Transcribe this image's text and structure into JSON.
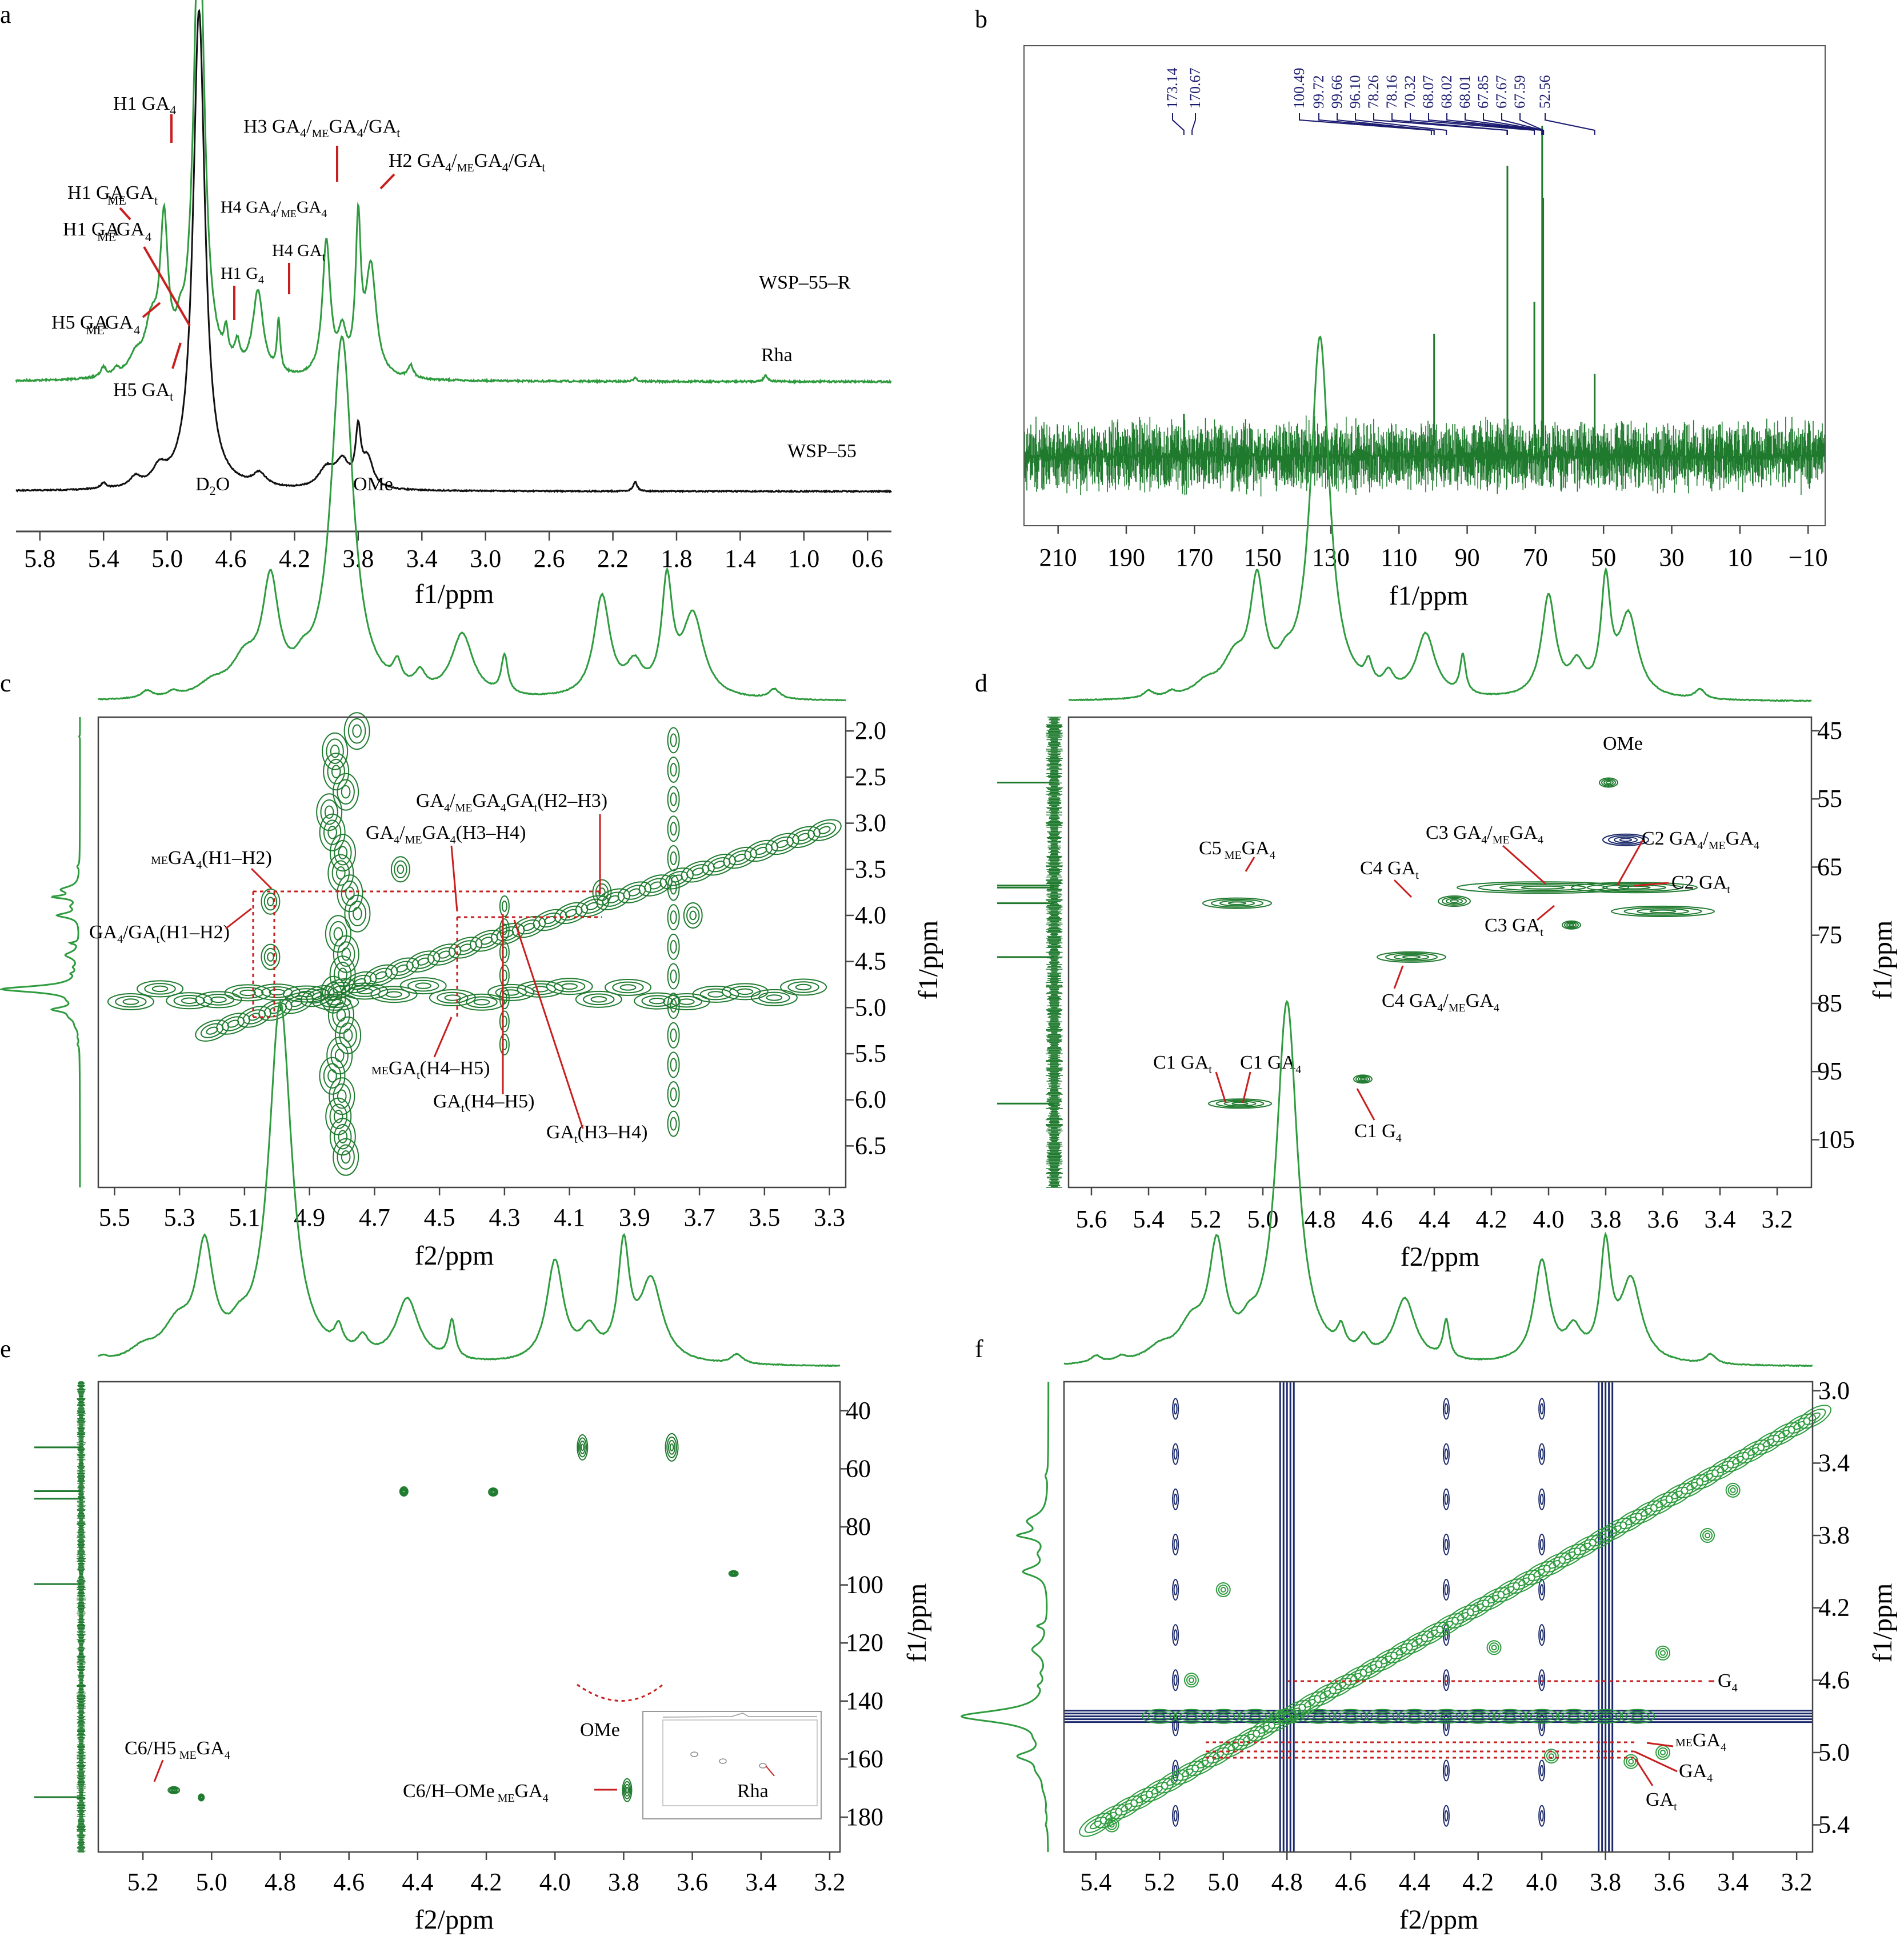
{
  "figure": {
    "panels": [
      {
        "id": "a",
        "letter": "a"
      },
      {
        "id": "b",
        "letter": "b"
      },
      {
        "id": "c",
        "letter": "c"
      },
      {
        "id": "d",
        "letter": "d"
      },
      {
        "id": "e",
        "letter": "e"
      },
      {
        "id": "f",
        "letter": "f"
      }
    ]
  },
  "colors": {
    "green": "#2e9b3e",
    "dark_green": "#1f7a2e",
    "navy": "#1c2a6b",
    "black": "#111111",
    "red": "#c81e1e",
    "peak_label": "#1a1a6e"
  },
  "chart_data": [
    {
      "panel": "a",
      "type": "line",
      "title": "",
      "xlabel": "f1/ppm",
      "ylabel": "",
      "xlim": [
        5.95,
        0.45
      ],
      "reversed": true,
      "xticks": [
        "5.8",
        "5.4",
        "5.0",
        "4.6",
        "4.2",
        "3.8",
        "3.4",
        "3.0",
        "2.6",
        "2.2",
        "1.8",
        "1.4",
        "1.0",
        "0.6"
      ],
      "series": [
        {
          "name": "WSP–55–R",
          "color": "#2e9b3e",
          "baseline": 0.73,
          "peaks": [
            {
              "x": 5.4,
              "h": 0.03,
              "w": 0.02
            },
            {
              "x": 5.32,
              "h": 0.02,
              "w": 0.02
            },
            {
              "x": 5.2,
              "h": 0.05,
              "w": 0.05
            },
            {
              "x": 5.1,
              "h": 0.14,
              "w": 0.05
            },
            {
              "x": 5.02,
              "h": 0.45,
              "w": 0.03
            },
            {
              "x": 4.92,
              "h": 0.07,
              "w": 0.03
            },
            {
              "x": 4.8,
              "h": 1.5,
              "w": 0.04
            },
            {
              "x": 4.63,
              "h": 0.09,
              "w": 0.015
            },
            {
              "x": 4.56,
              "h": 0.07,
              "w": 0.02
            },
            {
              "x": 4.43,
              "h": 0.26,
              "w": 0.04
            },
            {
              "x": 4.3,
              "h": 0.16,
              "w": 0.012
            },
            {
              "x": 4.0,
              "h": 0.42,
              "w": 0.03
            },
            {
              "x": 3.9,
              "h": 0.12,
              "w": 0.03
            },
            {
              "x": 3.8,
              "h": 0.46,
              "w": 0.02
            },
            {
              "x": 3.72,
              "h": 0.34,
              "w": 0.04
            },
            {
              "x": 3.47,
              "h": 0.04,
              "w": 0.02
            },
            {
              "x": 2.06,
              "h": 0.015,
              "w": 0.01
            },
            {
              "x": 1.24,
              "h": 0.02,
              "w": 0.015
            }
          ]
        },
        {
          "name": "WSP–55",
          "color": "#111111",
          "baseline": 0.93,
          "peaks": [
            {
              "x": 5.4,
              "h": 0.018,
              "w": 0.02
            },
            {
              "x": 5.2,
              "h": 0.03,
              "w": 0.04
            },
            {
              "x": 5.05,
              "h": 0.05,
              "w": 0.05
            },
            {
              "x": 4.8,
              "h": 1.5,
              "w": 0.045
            },
            {
              "x": 4.42,
              "h": 0.04,
              "w": 0.05
            },
            {
              "x": 4.0,
              "h": 0.06,
              "w": 0.06
            },
            {
              "x": 3.9,
              "h": 0.08,
              "w": 0.05
            },
            {
              "x": 3.8,
              "h": 0.17,
              "w": 0.02
            },
            {
              "x": 3.74,
              "h": 0.09,
              "w": 0.04
            },
            {
              "x": 2.06,
              "h": 0.03,
              "w": 0.015
            }
          ]
        }
      ],
      "annotations": [
        "H1 GA",
        "H1 GA",
        "H1 GA",
        "H5 GA",
        "H5 GA",
        "H1 G",
        "H4 GA",
        "H4 GA",
        "H3 GA",
        "H2 GA",
        "D",
        "O",
        "OMe",
        "Rha"
      ],
      "ann_sub": {
        "four": "4",
        "t": "t",
        "me": "ME",
        "two": "2",
        "slash": "/"
      },
      "series_labels": [
        "WSP–55–R",
        "WSP–55"
      ]
    },
    {
      "panel": "b",
      "type": "line",
      "title": "",
      "xlabel": "f1/ppm",
      "xlim": [
        220,
        -15
      ],
      "reversed": true,
      "xticks": [
        "210",
        "190",
        "170",
        "150",
        "130",
        "110",
        "90",
        "70",
        "50",
        "30",
        "10",
        "−10"
      ],
      "peak_labels": [
        "173.14",
        "170.67",
        "100.49",
        "99.72",
        "99.66",
        "96.10",
        "78.26",
        "78.16",
        "70.32",
        "68.07",
        "68.02",
        "68.01",
        "67.85",
        "67.67",
        "67.59",
        "52.56"
      ],
      "peaks": [
        {
          "x": 173.1,
          "h": 0.08
        },
        {
          "x": 99.7,
          "h": 0.28
        },
        {
          "x": 78.2,
          "h": 0.7
        },
        {
          "x": 70.3,
          "h": 0.36
        },
        {
          "x": 68.0,
          "h": 0.8
        },
        {
          "x": 67.7,
          "h": 0.62
        },
        {
          "x": 52.6,
          "h": 0.18
        }
      ]
    },
    {
      "panel": "c",
      "type": "heatmap",
      "title": "",
      "xlabel": "f2/ppm",
      "ylabel": "f1/ppm",
      "xlim": [
        5.55,
        3.25
      ],
      "ylim": [
        1.85,
        6.95
      ],
      "xticks": [
        "5.5",
        "5.3",
        "5.1",
        "4.9",
        "4.7",
        "4.5",
        "4.3",
        "4.1",
        "3.9",
        "3.7",
        "3.5",
        "3.3"
      ],
      "yticks": [
        "2.0",
        "2.5",
        "3.0",
        "3.5",
        "4.0",
        "4.5",
        "5.0",
        "5.5",
        "6.0",
        "6.5"
      ],
      "labels": [
        "GA",
        "GA",
        "(H2–H3)",
        "GA",
        "GA",
        "(H3–H4)",
        "GA",
        "(H1–H2)",
        "GA",
        "/GA",
        "(H1–H2)",
        "GA",
        "(H4–H5)",
        "GA",
        "(H4–H5)",
        "GA",
        "(H3–H4)"
      ]
    },
    {
      "panel": "d",
      "type": "heatmap",
      "title": "",
      "xlabel": "f2/ppm",
      "ylabel": "f1/ppm",
      "xlim": [
        5.68,
        3.08
      ],
      "ylim": [
        43,
        112
      ],
      "xticks": [
        "5.6",
        "5.4",
        "5.2",
        "5.0",
        "4.8",
        "4.6",
        "4.4",
        "4.2",
        "4.0",
        "3.8",
        "3.6",
        "3.4",
        "3.2"
      ],
      "yticks": [
        "45",
        "55",
        "65",
        "75",
        "85",
        "95",
        "105"
      ],
      "labels": [
        "OMe",
        "C5",
        "GA",
        "C3 GA",
        "GA",
        "C2 GA",
        "GA",
        "C4 GA",
        "C2 GA",
        "C3 GA",
        "C4 GA",
        "GA",
        "C1 GA",
        "C1 GA",
        "C1 G"
      ]
    },
    {
      "panel": "e",
      "type": "heatmap",
      "title": "",
      "xlabel": "f2/ppm",
      "ylabel": "f1/ppm",
      "xlim": [
        5.33,
        3.17
      ],
      "ylim": [
        30,
        192
      ],
      "xticks": [
        "5.2",
        "5.0",
        "4.8",
        "4.6",
        "4.4",
        "4.2",
        "4.0",
        "3.8",
        "3.6",
        "3.4",
        "3.2"
      ],
      "yticks": [
        "40",
        "60",
        "80",
        "100",
        "120",
        "140",
        "160",
        "180"
      ],
      "labels": [
        "OMe",
        "C6/H5",
        "GA",
        "C6/H–OMe",
        "GA",
        "Rha"
      ]
    },
    {
      "panel": "f",
      "type": "heatmap",
      "title": "",
      "xlabel": "f2/ppm",
      "ylabel": "f1/ppm",
      "xlim": [
        5.5,
        3.15
      ],
      "ylim": [
        2.95,
        5.55
      ],
      "xticks": [
        "5.4",
        "5.2",
        "5.0",
        "4.8",
        "4.6",
        "4.4",
        "4.2",
        "4.0",
        "3.8",
        "3.6",
        "3.4",
        "3.2"
      ],
      "yticks": [
        "3.0",
        "3.4",
        "3.8",
        "4.2",
        "4.6",
        "5.0",
        "5.4"
      ],
      "labels": [
        "G",
        "GA",
        "GA",
        "GA"
      ]
    }
  ]
}
